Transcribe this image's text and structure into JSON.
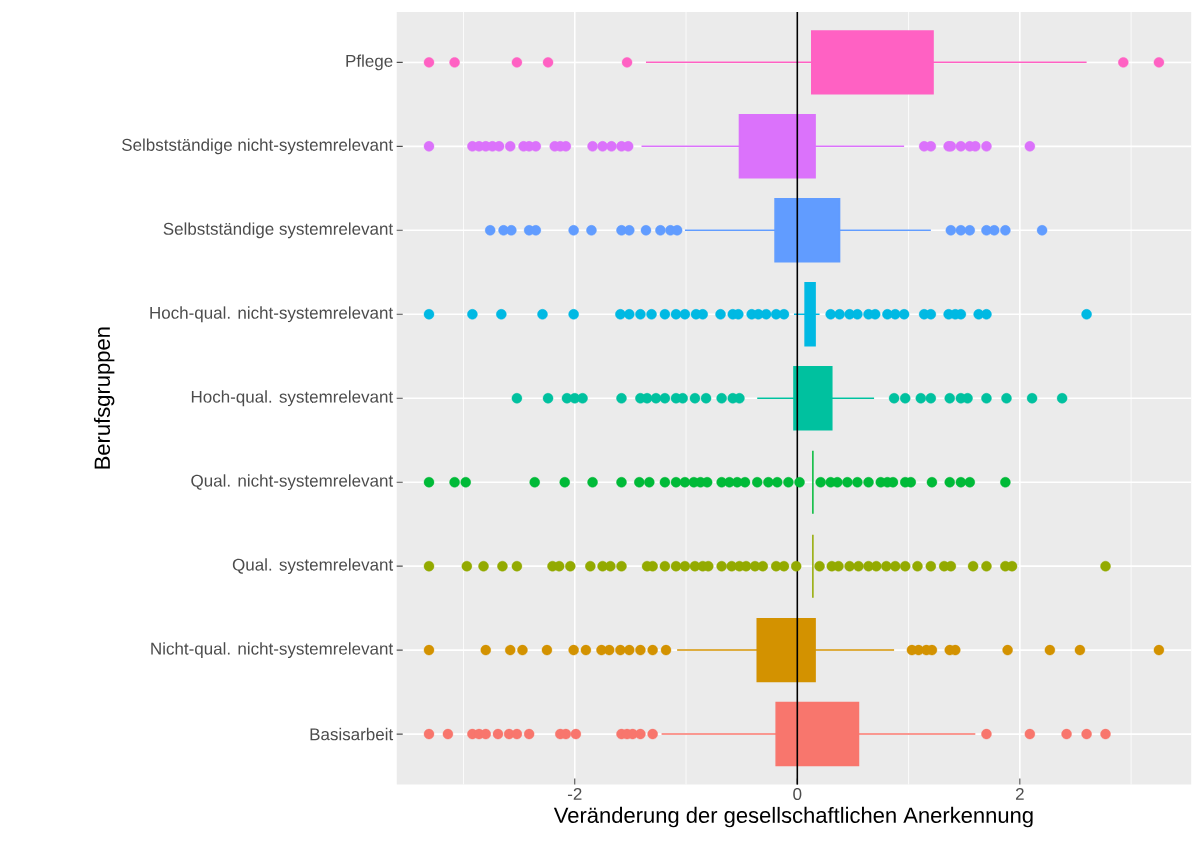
{
  "chart_data": {
    "type": "box",
    "orientation": "horizontal",
    "xlabel": "Veränderung der gesellschaftlichen Anerkennung",
    "ylabel": "Berufsgruppen",
    "categories": [
      "Pflege",
      "Selbstständige nicht-systemrelevant",
      "Selbstständige systemrelevant",
      "Hoch-qual. nicht-systemrelevant",
      "Hoch-qual. systemrelevant",
      "Qual. nicht-systemrelevant",
      "Qual. systemrelevant",
      "Nicht-qual. nicht-systemrelevant",
      "Basisarbeit"
    ],
    "colors": [
      "#ff61c3",
      "#db72fb",
      "#619cff",
      "#00b9e3",
      "#00c19f",
      "#00ba38",
      "#93aa00",
      "#d39200",
      "#f8766d"
    ],
    "boxes": [
      {
        "low": -1.36,
        "q1": 0.13,
        "q3": 1.22,
        "high": 2.6,
        "outliers": [
          -3.31,
          -3.08,
          -2.52,
          -2.24,
          -1.53,
          2.93,
          3.25
        ]
      },
      {
        "low": -1.4,
        "q1": -0.52,
        "q3": 0.16,
        "high": 0.96,
        "outliers": [
          -3.31,
          -2.92,
          -2.86,
          -2.8,
          -2.74,
          -2.68,
          -2.58,
          -2.46,
          -2.41,
          -2.35,
          -2.18,
          -2.13,
          -2.08,
          -1.84,
          -1.75,
          -1.67,
          -1.58,
          -1.52,
          1.14,
          1.2,
          1.36,
          1.38,
          1.47,
          1.55,
          1.6,
          1.7,
          2.09
        ]
      },
      {
        "low": -1.01,
        "q1": -0.2,
        "q3": 0.38,
        "high": 1.2,
        "outliers": [
          -2.76,
          -2.64,
          -2.57,
          -2.41,
          -2.35,
          -2.01,
          -1.85,
          -1.58,
          -1.51,
          -1.36,
          -1.23,
          -1.14,
          -1.08,
          1.38,
          1.47,
          1.55,
          1.7,
          1.77,
          1.87,
          2.2
        ]
      },
      {
        "low": -0.03,
        "q1": 0.07,
        "q3": 0.16,
        "high": 0.2,
        "outliers": [
          -3.31,
          -2.92,
          -2.66,
          -2.29,
          -2.01,
          -1.59,
          -1.51,
          -1.41,
          -1.31,
          -1.19,
          -1.09,
          -1.01,
          -0.91,
          -0.85,
          -0.69,
          -0.58,
          -0.53,
          -0.41,
          -0.35,
          -0.28,
          -0.19,
          -0.12,
          0.3,
          0.38,
          0.47,
          0.54,
          0.64,
          0.7,
          0.81,
          0.88,
          0.96,
          1.14,
          1.2,
          1.36,
          1.42,
          1.47,
          1.63,
          1.7,
          2.6
        ]
      },
      {
        "low": -0.36,
        "q1": -0.03,
        "q3": 0.31,
        "high": 0.69,
        "outliers": [
          -2.52,
          -2.24,
          -2.07,
          -2.0,
          -1.93,
          -1.58,
          -1.41,
          -1.35,
          -1.27,
          -1.19,
          -1.09,
          -1.03,
          -0.92,
          -0.82,
          -0.68,
          -0.58,
          -0.52,
          0.87,
          0.97,
          1.11,
          1.2,
          1.37,
          1.47,
          1.53,
          1.7,
          1.88,
          2.11,
          2.38
        ]
      },
      {
        "low": 0.14,
        "q1": 0.14,
        "q3": 0.14,
        "high": 0.14,
        "outliers": [
          -3.31,
          -3.08,
          -2.98,
          -2.36,
          -2.09,
          -1.84,
          -1.58,
          -1.42,
          -1.33,
          -1.19,
          -1.09,
          -1.01,
          -0.93,
          -0.87,
          -0.81,
          -0.68,
          -0.61,
          -0.54,
          -0.47,
          -0.36,
          -0.26,
          -0.18,
          -0.08,
          0.02,
          0.21,
          0.3,
          0.36,
          0.45,
          0.54,
          0.64,
          0.75,
          0.81,
          0.86,
          0.97,
          1.02,
          1.21,
          1.37,
          1.47,
          1.55,
          1.87
        ]
      },
      {
        "low": 0.14,
        "q1": 0.14,
        "q3": 0.14,
        "high": 0.14,
        "outliers": [
          -3.31,
          -2.97,
          -2.82,
          -2.65,
          -2.52,
          -2.2,
          -2.14,
          -2.04,
          -1.86,
          -1.75,
          -1.68,
          -1.58,
          -1.35,
          -1.3,
          -1.19,
          -1.09,
          -1.01,
          -0.92,
          -0.85,
          -0.8,
          -0.68,
          -0.59,
          -0.52,
          -0.46,
          -0.38,
          -0.31,
          -0.19,
          -0.12,
          -0.01,
          0.2,
          0.31,
          0.37,
          0.47,
          0.55,
          0.64,
          0.71,
          0.8,
          0.88,
          0.97,
          1.08,
          1.2,
          1.32,
          1.38,
          1.58,
          1.7,
          1.87,
          1.93,
          2.77
        ]
      },
      {
        "low": -1.08,
        "q1": -0.36,
        "q3": 0.16,
        "high": 0.87,
        "outliers": [
          -3.31,
          -2.8,
          -2.58,
          -2.47,
          -2.25,
          -2.01,
          -1.9,
          -1.76,
          -1.69,
          -1.59,
          -1.51,
          -1.41,
          -1.3,
          -1.18,
          1.03,
          1.09,
          1.16,
          1.21,
          1.37,
          1.42,
          1.89,
          2.27,
          2.54,
          3.25
        ]
      },
      {
        "low": -1.22,
        "q1": -0.19,
        "q3": 0.55,
        "high": 1.6,
        "outliers": [
          -3.31,
          -3.14,
          -2.92,
          -2.86,
          -2.8,
          -2.69,
          -2.59,
          -2.52,
          -2.41,
          -2.13,
          -2.08,
          -1.99,
          -1.58,
          -1.53,
          -1.48,
          -1.41,
          -1.3,
          1.7,
          2.09,
          2.42,
          2.6,
          2.77
        ]
      }
    ],
    "xlim": [
      -3.6,
      3.54
    ],
    "xticks": [
      -2,
      0,
      2
    ],
    "grid": true,
    "ref_lines": [
      {
        "axis": "x",
        "value": 0
      }
    ]
  }
}
